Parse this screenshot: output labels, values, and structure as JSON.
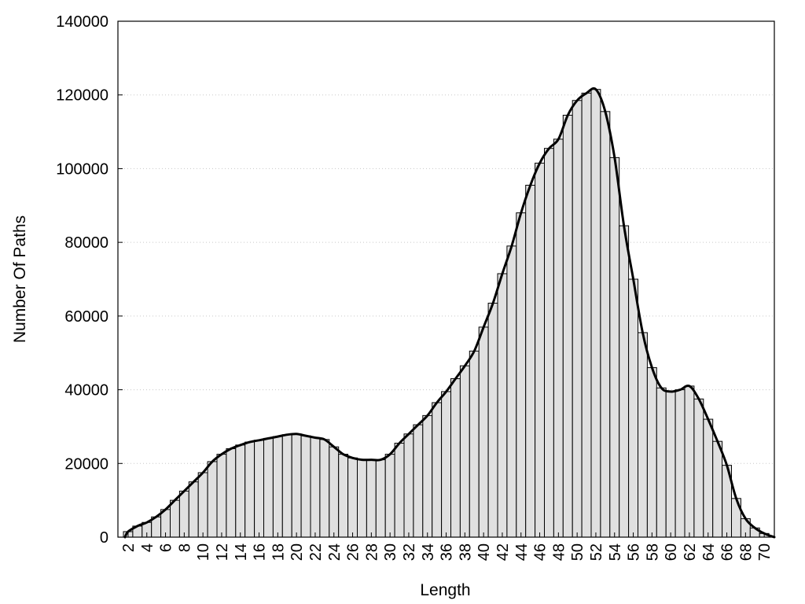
{
  "chart_data": {
    "type": "bar",
    "xlabel": "Length",
    "ylabel": "Number Of Paths",
    "ylim": [
      0,
      140000
    ],
    "yticks": [
      0,
      20000,
      40000,
      60000,
      80000,
      100000,
      120000,
      140000
    ],
    "xtick_labels": [
      "2",
      "4",
      "6",
      "8",
      "10",
      "12",
      "14",
      "16",
      "18",
      "20",
      "22",
      "24",
      "26",
      "28",
      "30",
      "32",
      "34",
      "36",
      "38",
      "40",
      "42",
      "44",
      "46",
      "48",
      "50",
      "52",
      "54",
      "56",
      "58",
      "60",
      "62",
      "64",
      "66",
      "68",
      "70"
    ],
    "grid": "horizontal dotted",
    "x": [
      2,
      3,
      4,
      5,
      6,
      7,
      8,
      9,
      10,
      11,
      12,
      13,
      14,
      15,
      16,
      17,
      18,
      19,
      20,
      21,
      22,
      23,
      24,
      25,
      26,
      27,
      28,
      29,
      30,
      31,
      32,
      33,
      34,
      35,
      36,
      37,
      38,
      39,
      40,
      41,
      42,
      43,
      44,
      45,
      46,
      47,
      48,
      49,
      50,
      51,
      52,
      53,
      54,
      55,
      56,
      57,
      58,
      59,
      60,
      61,
      62,
      63,
      64,
      65,
      66,
      67,
      68,
      69,
      70
    ],
    "values": [
      1500,
      3000,
      4000,
      5500,
      7500,
      10000,
      12500,
      15000,
      17500,
      20500,
      22500,
      24000,
      25000,
      25800,
      26300,
      26800,
      27300,
      27800,
      28000,
      27500,
      27000,
      26500,
      24500,
      22500,
      21500,
      21000,
      21000,
      21000,
      22500,
      25500,
      28000,
      30500,
      33000,
      36500,
      39500,
      43000,
      46500,
      50500,
      57000,
      63500,
      71500,
      79000,
      88000,
      95500,
      101500,
      105500,
      108000,
      114500,
      118500,
      120500,
      121500,
      115500,
      103000,
      84500,
      70000,
      55500,
      46000,
      40500,
      39500,
      40000,
      41000,
      37500,
      32000,
      26000,
      19500,
      10500,
      5000,
      2500,
      1000
    ],
    "trend_line": true,
    "colors": {
      "bar_fill": "#e0e0e0",
      "bar_edge": "#000000",
      "line": "#000000"
    }
  }
}
